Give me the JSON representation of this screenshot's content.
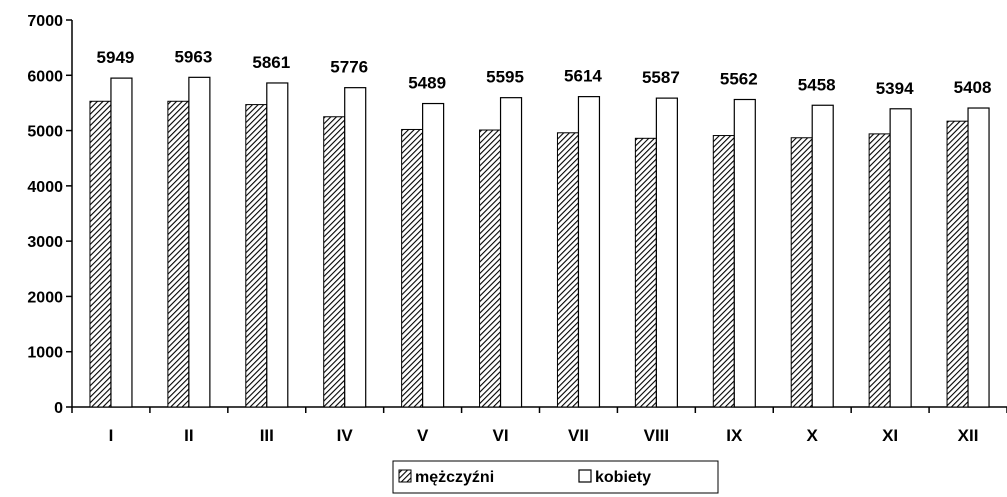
{
  "chart_data": {
    "type": "bar",
    "categories": [
      "I",
      "II",
      "III",
      "IV",
      "V",
      "VI",
      "VII",
      "VIII",
      "IX",
      "X",
      "XI",
      "XII"
    ],
    "series": [
      {
        "name": "mężczyźni",
        "pattern": "diagonal-hatch",
        "values": [
          5530,
          5530,
          5470,
          5250,
          5020,
          5010,
          4960,
          4860,
          4910,
          4870,
          4940,
          5170
        ]
      },
      {
        "name": "kobiety",
        "pattern": "white",
        "values": [
          5949,
          5963,
          5861,
          5776,
          5489,
          5595,
          5614,
          5587,
          5562,
          5458,
          5394,
          5408
        ]
      }
    ],
    "data_labels": [
      "5949",
      "5963",
      "5861",
      "5776",
      "5489",
      "5595",
      "5614",
      "5587",
      "5562",
      "5458",
      "5394",
      "5408"
    ],
    "y_ticks": [
      "0",
      "1000",
      "2000",
      "3000",
      "4000",
      "5000",
      "6000",
      "7000"
    ],
    "ylim": [
      0,
      7000
    ],
    "grid": false,
    "legend_position": "bottom"
  }
}
